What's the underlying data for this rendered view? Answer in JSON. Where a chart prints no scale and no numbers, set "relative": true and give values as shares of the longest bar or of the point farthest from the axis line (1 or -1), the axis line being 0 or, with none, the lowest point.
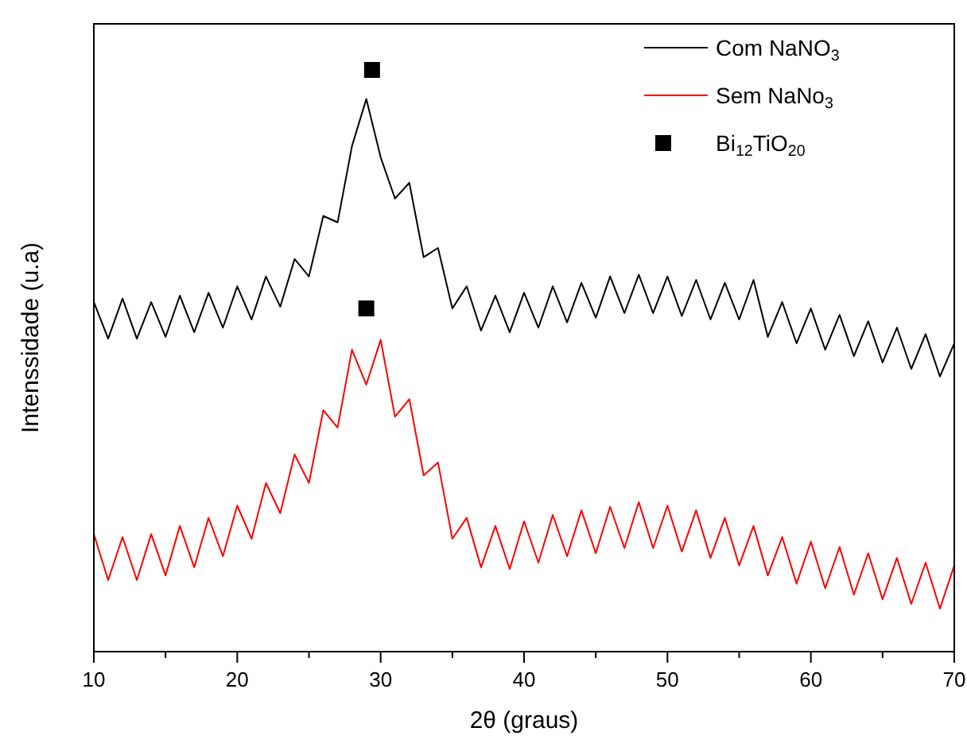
{
  "chart_data": {
    "type": "line",
    "xlabel": "2θ (graus)",
    "ylabel": "Intenssidade (u.a)",
    "relative": true,
    "tick_labels": "x",
    "legend": "top right",
    "grid": false,
    "xlim": [
      10,
      70
    ],
    "xticks": [
      10,
      {
        "value": 15,
        "label": null
      },
      20,
      {
        "value": 25,
        "label": null
      },
      30,
      {
        "value": 35,
        "label": null
      },
      40,
      {
        "value": 45,
        "label": null
      },
      50,
      {
        "value": 55,
        "label": null
      },
      60,
      {
        "value": 65,
        "label": null
      },
      70
    ],
    "x": [
      10,
      11,
      12,
      13,
      14,
      15,
      16,
      17,
      18,
      19,
      20,
      21,
      22,
      23,
      24,
      25,
      26,
      27,
      28,
      29,
      30,
      31,
      32,
      33,
      34,
      35,
      36,
      37,
      38,
      39,
      40,
      41,
      42,
      43,
      44,
      45,
      46,
      47,
      48,
      49,
      50,
      51,
      52,
      53,
      54,
      55,
      56,
      57,
      58,
      59,
      60,
      61,
      62,
      63,
      64,
      65,
      66,
      67,
      68,
      69,
      70
    ],
    "series": [
      {
        "name": "Com NaNO$_{3}$",
        "color": "#000000",
        "values": [
          0.601,
          0.538,
          0.607,
          0.538,
          0.601,
          0.541,
          0.612,
          0.549,
          0.617,
          0.557,
          0.628,
          0.571,
          0.645,
          0.593,
          0.675,
          0.645,
          0.749,
          0.738,
          0.869,
          0.95,
          0.85,
          0.779,
          0.806,
          0.678,
          0.694,
          0.59,
          0.628,
          0.552,
          0.612,
          0.549,
          0.617,
          0.557,
          0.628,
          0.566,
          0.634,
          0.574,
          0.645,
          0.582,
          0.648,
          0.582,
          0.645,
          0.577,
          0.639,
          0.571,
          0.634,
          0.571,
          0.639,
          0.541,
          0.601,
          0.53,
          0.59,
          0.519,
          0.579,
          0.508,
          0.568,
          0.497,
          0.557,
          0.486,
          0.546,
          0.473,
          0.53
        ]
      },
      {
        "name": "Sem NaNo$_{3}$",
        "color": "#ff0000",
        "values": [
          0.202,
          0.123,
          0.197,
          0.123,
          0.202,
          0.131,
          0.216,
          0.145,
          0.23,
          0.164,
          0.251,
          0.194,
          0.29,
          0.238,
          0.339,
          0.29,
          0.415,
          0.385,
          0.519,
          0.459,
          0.536,
          0.404,
          0.434,
          0.303,
          0.325,
          0.194,
          0.23,
          0.145,
          0.216,
          0.142,
          0.224,
          0.153,
          0.235,
          0.164,
          0.243,
          0.169,
          0.249,
          0.178,
          0.257,
          0.178,
          0.251,
          0.172,
          0.243,
          0.161,
          0.23,
          0.148,
          0.216,
          0.131,
          0.197,
          0.117,
          0.189,
          0.109,
          0.18,
          0.098,
          0.169,
          0.09,
          0.161,
          0.082,
          0.153,
          0.074,
          0.148
        ]
      },
      {
        "name": "Bi$_{12}$TiO$_{20}$",
        "type": "scatter",
        "marker": "square",
        "color": "#000000",
        "x": [
          29.4,
          29.0
        ],
        "values": [
          1,
          0.59
        ]
      }
    ]
  }
}
